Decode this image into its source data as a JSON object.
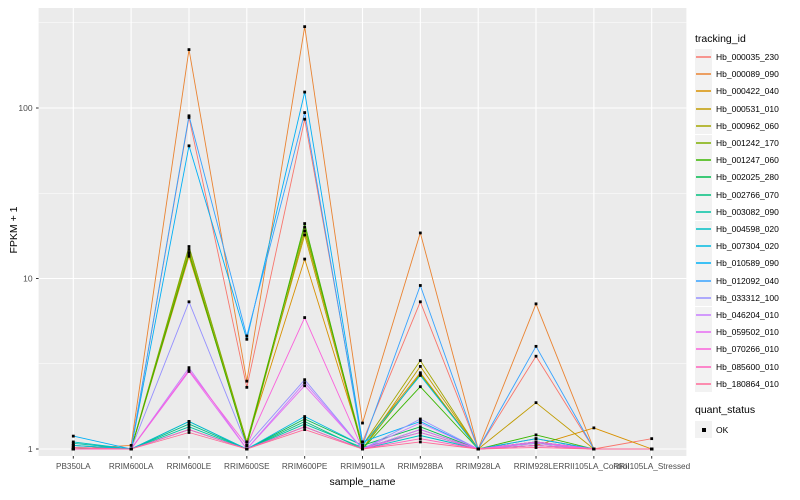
{
  "axes": {
    "x_title": "sample_name",
    "y_title": "FPKM + 1",
    "y_tick_labels": [
      "100",
      "10",
      "1"
    ]
  },
  "legend": {
    "tracking_title": "tracking_id",
    "quant_title": "quant_status",
    "quant_entries": [
      {
        "label": "OK",
        "shape": "black-square"
      }
    ]
  },
  "style": {
    "panel_bg": "#EBEBEB",
    "grid_color": "#FFFFFF",
    "tick_color": "#333333",
    "tick_label_color": "#4D4D4D",
    "point_color": "#000000"
  },
  "chart_data": {
    "type": "line",
    "title": "",
    "xlabel": "sample_name",
    "ylabel": "FPKM + 1",
    "y_scale": "log10",
    "ylim": [
      0.95,
      385
    ],
    "y_major_ticks": [
      1,
      10,
      100
    ],
    "y_minor_gridlines": [
      3.162,
      31.62,
      316.2
    ],
    "grid": true,
    "legend_position": "right",
    "point_shape": "square",
    "categories": [
      "PB350LA",
      "RRIM600LA",
      "RRIM600LE",
      "RRIM600SE",
      "RRIM600PE",
      "RRIM901LA",
      "RRIM928BA",
      "RRIM928LA",
      "RRIM928LE",
      "RRII105LA_Control",
      "RRII105LA_Stressed"
    ],
    "series": [
      {
        "name": "Hb_000035_230",
        "color": "#F8766D",
        "values": [
          1.05,
          1.0,
          88,
          2.3,
          86,
          1.1,
          7.3,
          1.0,
          3.5,
          1.0,
          1.15
        ]
      },
      {
        "name": "Hb_000089_090",
        "color": "#EA8331",
        "values": [
          1.0,
          1.05,
          220,
          2.5,
          300,
          1.42,
          18.5,
          1.0,
          7.1,
          1.0,
          1.0
        ]
      },
      {
        "name": "Hb_000422_040",
        "color": "#D89000",
        "values": [
          1.0,
          1.0,
          13.5,
          1.1,
          13,
          1.05,
          2.8,
          1.0,
          1.05,
          1.33,
          1.0
        ]
      },
      {
        "name": "Hb_000531_010",
        "color": "#C09B00",
        "values": [
          1.0,
          1.0,
          14.2,
          1.1,
          18,
          1.0,
          3.05,
          1.0,
          1.87,
          1.0,
          1.0
        ]
      },
      {
        "name": "Hb_000962_060",
        "color": "#A3A500",
        "values": [
          1.0,
          1.0,
          14.8,
          1.05,
          19,
          1.05,
          3.3,
          1.0,
          1.1,
          1.0,
          1.0
        ]
      },
      {
        "name": "Hb_001242_170",
        "color": "#7CAE00",
        "values": [
          1.0,
          1.0,
          15.4,
          1.1,
          20,
          1.0,
          2.75,
          1.0,
          1.15,
          1.0,
          1.0
        ]
      },
      {
        "name": "Hb_001247_060",
        "color": "#39B600",
        "values": [
          1.0,
          1.0,
          14.0,
          1.05,
          21,
          1.0,
          2.32,
          1.0,
          1.21,
          1.0,
          1.0
        ]
      },
      {
        "name": "Hb_002025_280",
        "color": "#00BB4E",
        "values": [
          1.02,
          1.0,
          1.45,
          1.0,
          1.5,
          1.05,
          1.35,
          1.0,
          1.1,
          1.0,
          1.0
        ]
      },
      {
        "name": "Hb_002766_070",
        "color": "#00BF7D",
        "values": [
          1.05,
          1.0,
          1.4,
          1.0,
          1.45,
          1.0,
          1.3,
          1.0,
          1.08,
          1.0,
          1.0
        ]
      },
      {
        "name": "Hb_003082_090",
        "color": "#00C1A3",
        "values": [
          1.08,
          1.0,
          1.35,
          1.0,
          1.4,
          1.02,
          1.25,
          1.0,
          1.05,
          1.0,
          1.0
        ]
      },
      {
        "name": "Hb_004598_020",
        "color": "#00BFC4",
        "values": [
          1.1,
          1.0,
          1.3,
          1.0,
          1.35,
          1.0,
          1.2,
          1.0,
          1.05,
          1.0,
          1.0
        ]
      },
      {
        "name": "Hb_007304_020",
        "color": "#00BAE0",
        "values": [
          1.05,
          1.0,
          1.45,
          1.0,
          1.55,
          1.05,
          2.7,
          1.0,
          1.1,
          1.0,
          1.0
        ]
      },
      {
        "name": "Hb_010589_090",
        "color": "#00B0F6",
        "values": [
          1.19,
          1.0,
          60,
          4.4,
          124,
          1.1,
          1.45,
          1.0,
          1.15,
          1.0,
          1.0
        ]
      },
      {
        "name": "Hb_012092_040",
        "color": "#35A2FF",
        "values": [
          1.0,
          1.0,
          90,
          4.6,
          94,
          1.05,
          9.1,
          1.0,
          4.0,
          1.0,
          1.0
        ]
      },
      {
        "name": "Hb_033312_100",
        "color": "#9590FF",
        "values": [
          1.0,
          1.0,
          7.3,
          1.05,
          2.55,
          1.0,
          1.5,
          1.0,
          1.1,
          1.0,
          1.0
        ]
      },
      {
        "name": "Hb_046204_010",
        "color": "#C77CFF",
        "values": [
          1.0,
          1.0,
          3.0,
          1.0,
          2.45,
          1.0,
          1.42,
          1.0,
          1.08,
          1.0,
          1.0
        ]
      },
      {
        "name": "Hb_059502_010",
        "color": "#E76BF3",
        "values": [
          1.0,
          1.0,
          2.85,
          1.0,
          2.35,
          1.0,
          1.3,
          1.0,
          1.05,
          1.0,
          1.0
        ]
      },
      {
        "name": "Hb_070266_010",
        "color": "#FA62DB",
        "values": [
          1.0,
          1.0,
          2.9,
          1.05,
          5.9,
          1.0,
          1.25,
          1.0,
          1.1,
          1.0,
          1.0
        ]
      },
      {
        "name": "Hb_085600_010",
        "color": "#FF62BC",
        "values": [
          1.0,
          1.0,
          1.3,
          1.0,
          1.35,
          1.0,
          1.15,
          1.0,
          1.05,
          1.0,
          1.0
        ]
      },
      {
        "name": "Hb_180864_010",
        "color": "#FF6A98",
        "values": [
          1.02,
          1.0,
          1.25,
          1.0,
          1.3,
          1.0,
          1.1,
          1.0,
          1.02,
          1.0,
          1.0
        ]
      }
    ]
  }
}
